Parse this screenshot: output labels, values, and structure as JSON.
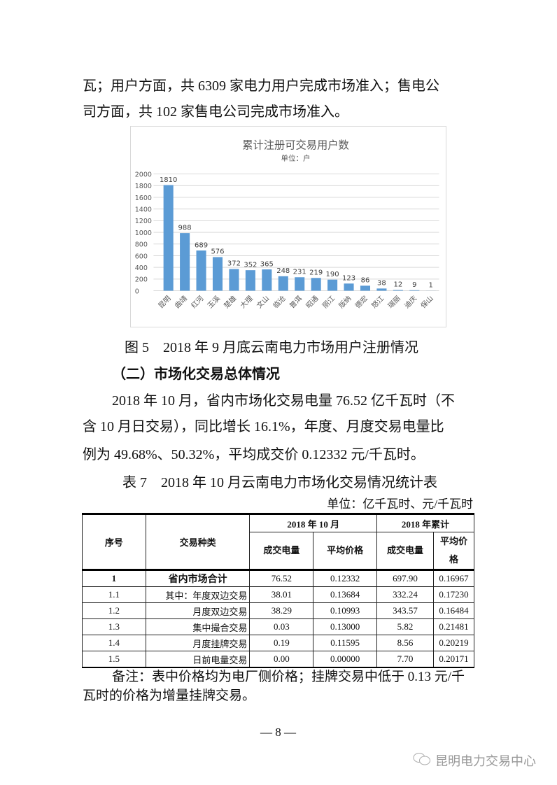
{
  "text": {
    "line1": "瓦；用户方面，共 6309 家电力用户完成市场准入；售电公",
    "line2": "司方面，共 102 家售电公司完成市场准入。",
    "figure_caption": "图 5　2018 年 9 月底云南电力市场用户注册情况",
    "section_heading": "（二）市场化交易总体情况",
    "para_line1": "2018 年 10 月，省内市场化交易电量 76.52 亿千瓦时（不",
    "para_line2": "含 10 月日交易），同比增长 16.1%，年度、月度交易电量比",
    "para_line3": "例为 49.68%、50.32%，平均成交价 0.12332 元/千瓦时。",
    "table_title": "表 7　2018 年 10 月云南电力市场化交易情况统计表",
    "table_unit": "单位：亿千瓦时、元/千瓦时",
    "note_line1": "备注：表中价格均为电厂侧价格；挂牌交易中低于 0.13 元/千",
    "note_line2": "瓦时的价格为增量挂牌交易。",
    "page_number": "— 8 —",
    "watermark": "昆明电力交易中心"
  },
  "chart_data": {
    "type": "bar",
    "title": "累计注册可交易用户数",
    "subtitle": "单位：户",
    "categories": [
      "昆明",
      "曲靖",
      "红河",
      "玉溪",
      "楚雄",
      "大理",
      "文山",
      "临沧",
      "普洱",
      "昭通",
      "丽江",
      "版纳",
      "德宏",
      "怒江",
      "瑞丽",
      "迪庆",
      "保山"
    ],
    "values": [
      1810,
      988,
      689,
      576,
      372,
      352,
      365,
      248,
      231,
      219,
      190,
      123,
      86,
      38,
      12,
      9,
      1
    ],
    "ylim": [
      0,
      2000
    ],
    "yticks": [
      0,
      200,
      400,
      600,
      800,
      1000,
      1200,
      1400,
      1600,
      1800,
      2000
    ],
    "grid": true,
    "bar_color": "#5b9bd5"
  },
  "table": {
    "headers": {
      "seq": "序号",
      "type": "交易种类",
      "month_group": "2018 年 10 月",
      "year_group": "2018 年累计",
      "volume": "成交电量",
      "price": "平均价格"
    },
    "rows": [
      {
        "seq": "1",
        "type": "省内市场合计",
        "m_vol": "76.52",
        "m_price": "0.12332",
        "y_vol": "697.90",
        "y_price": "0.16967"
      },
      {
        "seq": "1.1",
        "type": "其中：年度双边交易",
        "m_vol": "38.01",
        "m_price": "0.13684",
        "y_vol": "332.24",
        "y_price": "0.17230"
      },
      {
        "seq": "1.2",
        "type": "月度双边交易",
        "m_vol": "38.29",
        "m_price": "0.10993",
        "y_vol": "343.57",
        "y_price": "0.16484"
      },
      {
        "seq": "1.3",
        "type": "集中撮合交易",
        "m_vol": "0.03",
        "m_price": "0.13000",
        "y_vol": "5.82",
        "y_price": "0.21481"
      },
      {
        "seq": "1.4",
        "type": "月度挂牌交易",
        "m_vol": "0.19",
        "m_price": "0.11595",
        "y_vol": "8.56",
        "y_price": "0.20219"
      },
      {
        "seq": "1.5",
        "type": "日前电量交易",
        "m_vol": "0.00",
        "m_price": "0.00000",
        "y_vol": "7.70",
        "y_price": "0.20171"
      }
    ]
  }
}
